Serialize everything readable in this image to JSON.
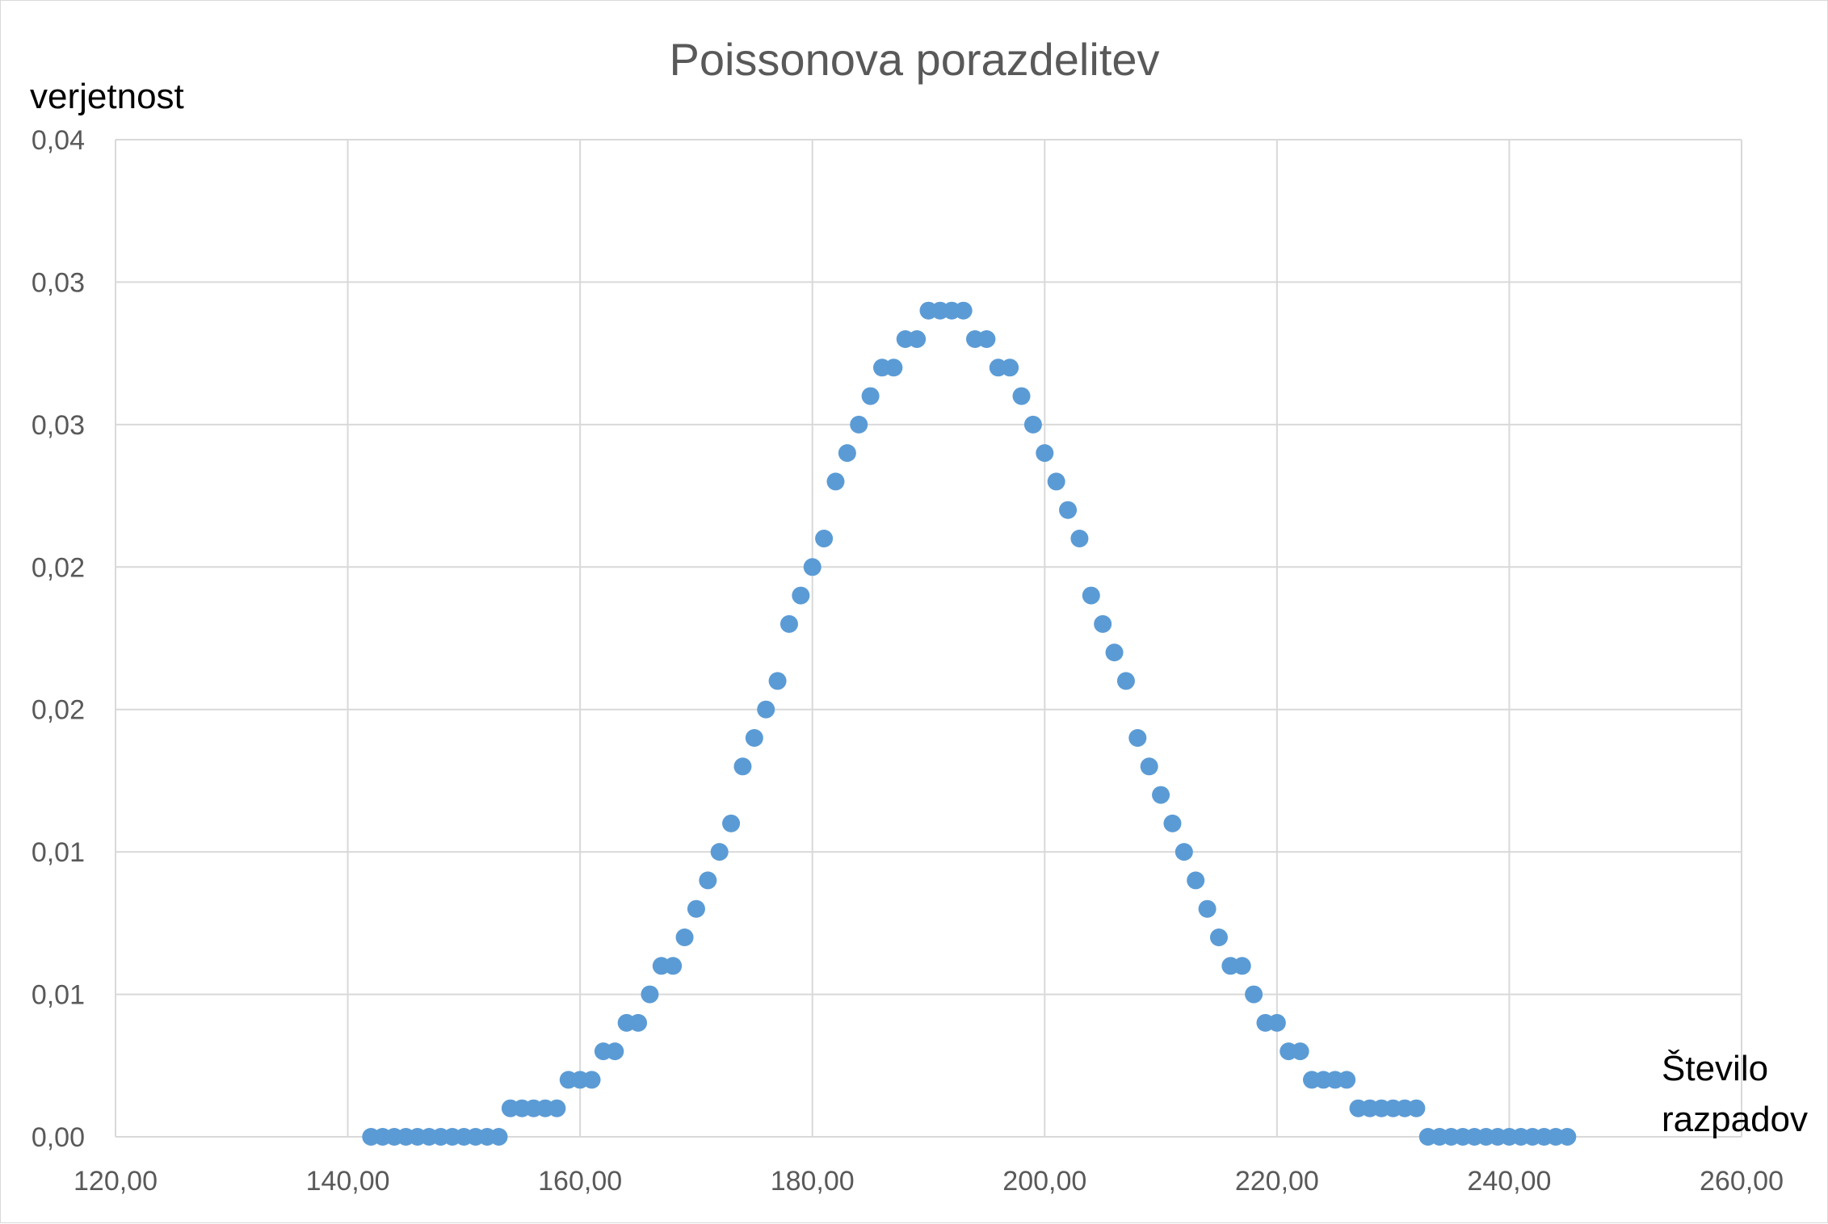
{
  "chart_data": {
    "type": "scatter",
    "title": "Poissonova porazdelitev",
    "xlabel_lines": [
      "Število",
      "razpadov"
    ],
    "ylabel": "verjetnost",
    "xlim": [
      120,
      260
    ],
    "ylim": [
      0,
      0.035
    ],
    "grid": true,
    "legend": "none",
    "x_tick_labels": [
      "120,00",
      "140,00",
      "160,00",
      "180,00",
      "200,00",
      "220,00",
      "240,00",
      "260,00"
    ],
    "y_tick_labels": [
      "0,00",
      "0,01",
      "0,01",
      "0,02",
      "0,02",
      "0,03",
      "0,03",
      "0,04"
    ],
    "marker_color": "#5b9bd5",
    "series": [
      {
        "x": [
          142,
          143,
          144,
          145,
          146,
          147,
          148,
          149,
          150,
          151,
          152,
          153,
          154,
          155,
          156,
          157,
          158,
          159,
          160,
          161,
          162,
          163,
          164,
          165,
          166,
          167,
          168,
          169,
          170,
          171,
          172,
          173,
          174,
          175,
          176,
          177,
          178,
          179,
          180,
          181,
          182,
          183,
          184,
          185,
          186,
          187,
          188,
          189,
          190,
          191,
          192,
          193,
          194,
          195,
          196,
          197,
          198,
          199,
          200,
          201,
          202,
          203,
          204,
          205,
          206,
          207,
          208,
          209,
          210,
          211,
          212,
          213,
          214,
          215,
          216,
          217,
          218,
          219,
          220,
          221,
          222,
          223,
          224,
          225,
          226,
          227,
          228,
          229,
          230,
          231,
          232,
          233,
          234,
          235,
          236,
          237,
          238,
          239,
          240,
          241,
          242,
          243,
          244,
          245
        ],
        "y": [
          0,
          0,
          0,
          0,
          0,
          0,
          0,
          0,
          0,
          0,
          0,
          0,
          0.001,
          0.001,
          0.001,
          0.001,
          0.001,
          0.002,
          0.002,
          0.002,
          0.003,
          0.003,
          0.004,
          0.004,
          0.005,
          0.006,
          0.006,
          0.007,
          0.008,
          0.009,
          0.01,
          0.011,
          0.013,
          0.014,
          0.015,
          0.016,
          0.018,
          0.019,
          0.02,
          0.021,
          0.023,
          0.024,
          0.025,
          0.026,
          0.027,
          0.027,
          0.028,
          0.028,
          0.029,
          0.029,
          0.029,
          0.029,
          0.028,
          0.028,
          0.027,
          0.027,
          0.026,
          0.025,
          0.024,
          0.023,
          0.022,
          0.021,
          0.019,
          0.018,
          0.017,
          0.016,
          0.014,
          0.013,
          0.012,
          0.011,
          0.01,
          0.009,
          0.008,
          0.007,
          0.006,
          0.006,
          0.005,
          0.004,
          0.004,
          0.003,
          0.003,
          0.002,
          0.002,
          0.002,
          0.002,
          0.001,
          0.001,
          0.001,
          0.001,
          0.001,
          0.001,
          0,
          0,
          0,
          0,
          0,
          0,
          0,
          0,
          0,
          0,
          0,
          0,
          0
        ]
      }
    ]
  }
}
